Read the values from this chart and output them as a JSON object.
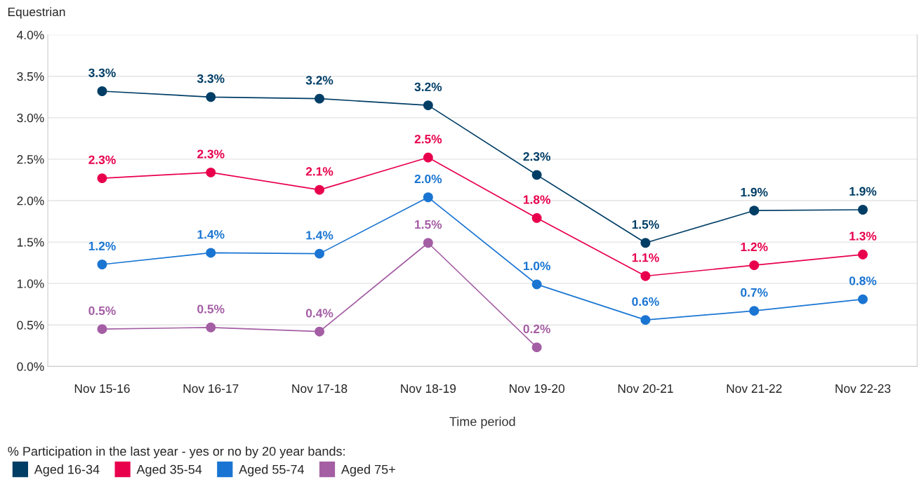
{
  "chart_data": {
    "type": "line",
    "title": "Equestrian",
    "xlabel": "Time period",
    "legend_title": "% Participation in the last year - yes or no by 20 year bands:",
    "categories": [
      "Nov 15-16",
      "Nov 16-17",
      "Nov 17-18",
      "Nov 18-19",
      "Nov 19-20",
      "Nov 20-21",
      "Nov 21-22",
      "Nov 22-23"
    ],
    "series": [
      {
        "name": "Aged 16-34",
        "color": "#003e66",
        "values": [
          3.32,
          3.25,
          3.23,
          3.15,
          2.31,
          1.49,
          1.88,
          1.89
        ],
        "value_labels": [
          "3.3%",
          "3.3%",
          "3.2%",
          "3.2%",
          "2.3%",
          "1.5%",
          "1.9%",
          "1.9%"
        ]
      },
      {
        "name": "Aged 35-54",
        "color": "#e8004d",
        "values": [
          2.27,
          2.34,
          2.13,
          2.52,
          1.79,
          1.09,
          1.22,
          1.35
        ],
        "value_labels": [
          "2.3%",
          "2.3%",
          "2.1%",
          "2.5%",
          "1.8%",
          "1.1%",
          "1.2%",
          "1.3%"
        ]
      },
      {
        "name": "Aged 55-74",
        "color": "#1a75d2",
        "values": [
          1.23,
          1.37,
          1.36,
          2.04,
          0.99,
          0.56,
          0.67,
          0.81
        ],
        "value_labels": [
          "1.2%",
          "1.4%",
          "1.4%",
          "2.0%",
          "1.0%",
          "0.6%",
          "0.7%",
          "0.8%"
        ]
      },
      {
        "name": "Aged 75+",
        "color": "#a45ea4",
        "values": [
          0.45,
          0.47,
          0.42,
          1.49,
          0.23,
          null,
          null,
          null
        ],
        "value_labels": [
          "0.5%",
          "0.5%",
          "0.4%",
          "1.5%",
          "0.2%",
          null,
          null,
          null
        ]
      }
    ],
    "ylim": [
      0,
      4
    ],
    "yticks": [
      {
        "value": 0,
        "label": "0.0%"
      },
      {
        "value": 0.5,
        "label": "0.5%"
      },
      {
        "value": 1,
        "label": "1.0%"
      },
      {
        "value": 1.5,
        "label": "1.5%"
      },
      {
        "value": 2,
        "label": "2.0%"
      },
      {
        "value": 2.5,
        "label": "2.5%"
      },
      {
        "value": 3,
        "label": "3.0%"
      },
      {
        "value": 3.5,
        "label": "3.5%"
      },
      {
        "value": 4,
        "label": "4.0%"
      }
    ],
    "grid": "y",
    "legend": "bottom left",
    "marker": "circle",
    "line_style": "solid"
  }
}
